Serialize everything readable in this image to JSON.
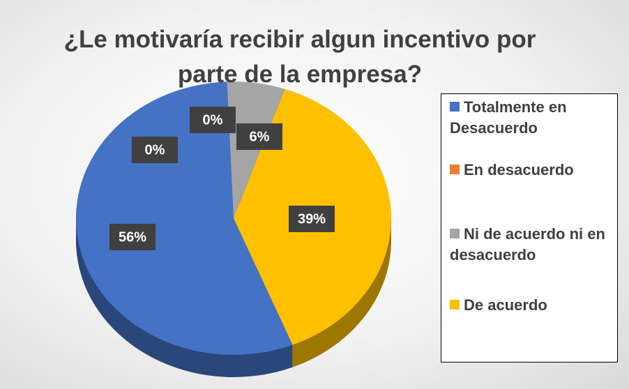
{
  "chart_data": {
    "type": "pie",
    "title": "¿Le motivaría recibir algun incentivo por parte de la empresa?",
    "categories": [
      "Totalmente en Desacuerdo",
      "En desacuerdo",
      "Ni de acuerdo ni en desacuerdo",
      "De acuerdo",
      null
    ],
    "values": [
      56,
      0,
      6,
      39,
      0
    ],
    "colors": [
      "#4472c4",
      "#ed7d31",
      "#a5a5a5",
      "#ffc000",
      "#5b9bd5"
    ],
    "legend": "right"
  }
}
